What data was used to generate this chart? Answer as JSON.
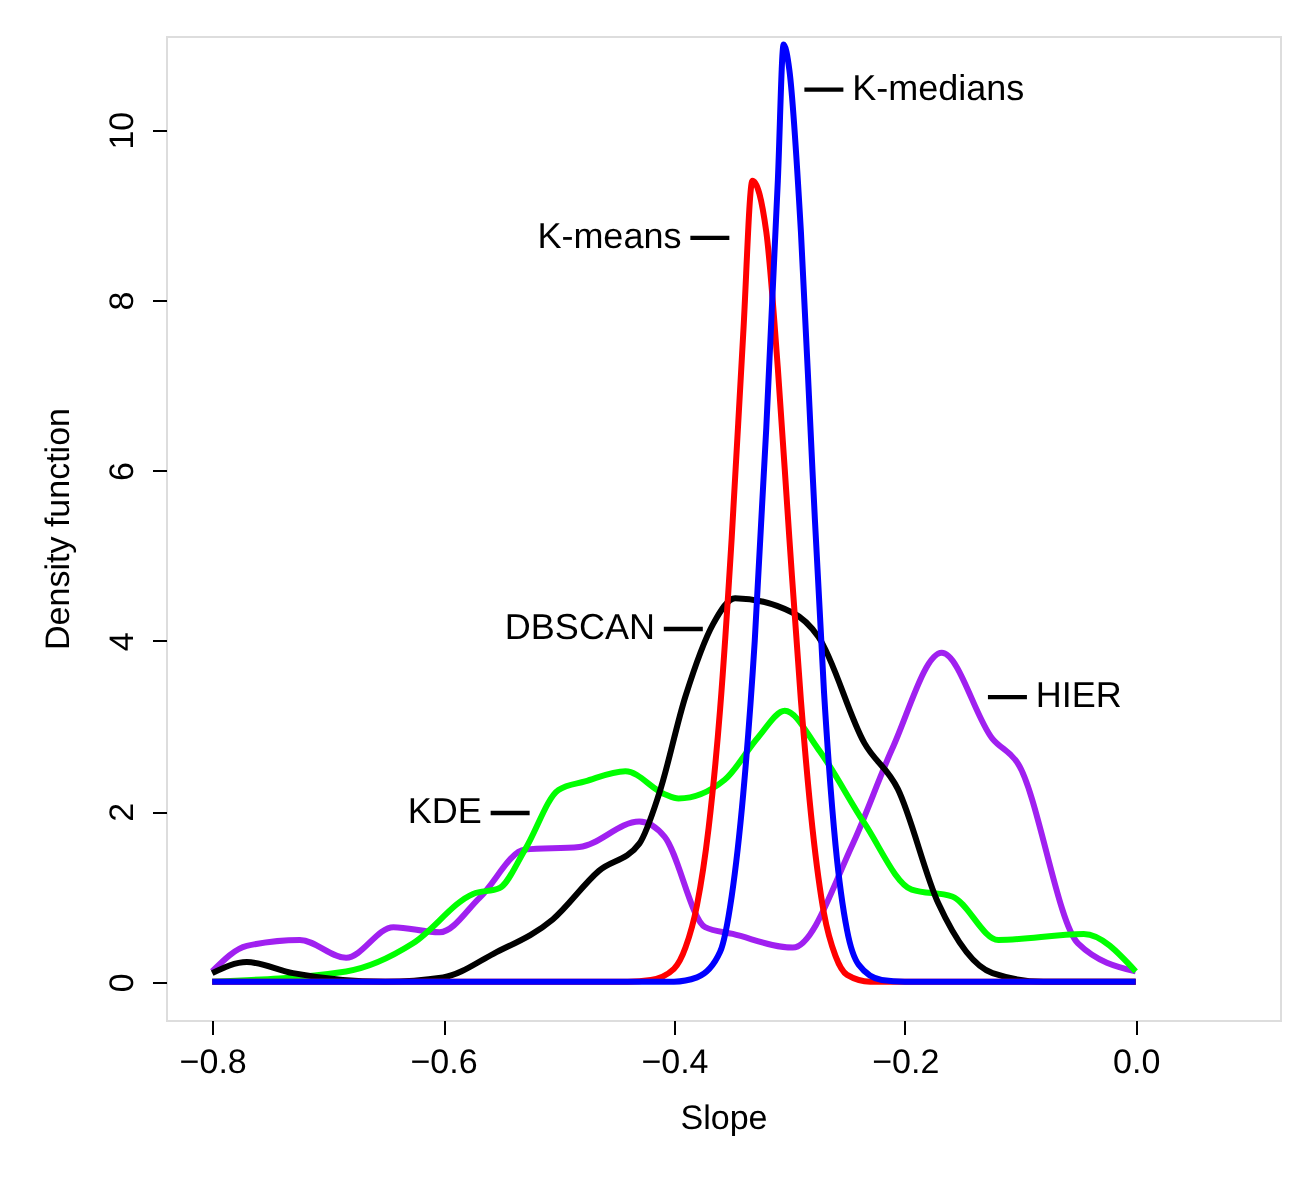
{
  "chart_data": {
    "type": "line",
    "xlabel": "Slope",
    "ylabel": "Density function",
    "xlim": [
      -0.84,
      0.125
    ],
    "ylim": [
      -0.45,
      11.1
    ],
    "xticks": [
      -0.8,
      -0.6,
      -0.4,
      -0.2,
      {
        "value": 0,
        "label": "0.0"
      }
    ],
    "yticks": [
      0,
      2,
      4,
      6,
      8,
      10
    ],
    "grid": false,
    "marker": "none",
    "line_style": "solid",
    "series": [
      {
        "color": "#a020f0",
        "x": [
          -0.8,
          -0.77,
          -0.724,
          -0.684,
          -0.643,
          -0.603,
          -0.568,
          -0.529,
          -0.482,
          -0.43,
          -0.408,
          -0.373,
          -0.349,
          -0.297,
          -0.245,
          -0.211,
          -0.168,
          -0.124,
          -0.102,
          -0.05,
          0.0
        ],
        "values": [
          0.12,
          0.42,
          0.49,
          0.28,
          0.64,
          0.58,
          0.99,
          1.55,
          1.58,
          1.88,
          1.7,
          0.64,
          0.56,
          0.4,
          1.62,
          2.73,
          3.86,
          2.85,
          2.56,
          0.45,
          0.12
        ]
      },
      {
        "color": "#00ff00",
        "x": [
          -0.8,
          -0.684,
          -0.626,
          -0.574,
          -0.551,
          -0.529,
          -0.5,
          -0.477,
          -0.442,
          -0.408,
          -0.396,
          -0.356,
          -0.327,
          -0.304,
          -0.275,
          -0.235,
          -0.194,
          -0.159,
          -0.119,
          -0.045,
          0.0
        ],
        "values": [
          0,
          0.12,
          0.45,
          1.03,
          1.1,
          1.55,
          2.25,
          2.35,
          2.47,
          2.2,
          2.15,
          2.37,
          2.87,
          3.18,
          2.73,
          1.86,
          1.08,
          1.0,
          0.49,
          0.56,
          0.12
        ]
      },
      {
        "color": "#000000",
        "x": [
          -0.8,
          -0.77,
          -0.73,
          -0.65,
          -0.6,
          -0.556,
          -0.505,
          -0.465,
          -0.43,
          -0.413,
          -0.39,
          -0.366,
          -0.347,
          -0.297,
          -0.275,
          -0.235,
          -0.206,
          -0.171,
          -0.124,
          -0.08,
          0.0
        ],
        "values": [
          0.1,
          0.23,
          0.1,
          0,
          0.05,
          0.33,
          0.73,
          1.3,
          1.62,
          2.2,
          3.35,
          4.2,
          4.5,
          4.33,
          4.05,
          2.8,
          2.26,
          0.92,
          0.1,
          0,
          0
        ]
      },
      {
        "color": "#ff0000",
        "x": [
          -0.8,
          -0.44,
          -0.42,
          -0.4,
          -0.39,
          -0.38,
          -0.37,
          -0.36,
          -0.35,
          -0.34,
          -0.332,
          -0.32,
          -0.31,
          -0.3,
          -0.29,
          -0.28,
          -0.27,
          -0.26,
          -0.25,
          -0.23,
          0.0
        ],
        "values": [
          0,
          0,
          0.02,
          0.15,
          0.4,
          0.9,
          1.8,
          3.2,
          5.2,
          7.6,
          9.4,
          8.8,
          7.2,
          5.2,
          3.3,
          1.8,
          0.8,
          0.3,
          0.08,
          0,
          0
        ]
      },
      {
        "color": "#0000ff",
        "x": [
          -0.8,
          -0.4,
          -0.38,
          -0.36,
          -0.35,
          -0.34,
          -0.33,
          -0.32,
          -0.31,
          -0.305,
          -0.3,
          -0.29,
          -0.28,
          -0.27,
          -0.26,
          -0.25,
          -0.24,
          -0.22,
          -0.2,
          0.0
        ],
        "values": [
          0,
          0,
          0.05,
          0.35,
          1.0,
          2.2,
          4.0,
          6.5,
          9.4,
          11.0,
          10.7,
          8.8,
          6.0,
          3.4,
          1.6,
          0.6,
          0.2,
          0.02,
          0,
          0
        ]
      }
    ],
    "annotations": [
      "HIER",
      "KDE",
      "DBSCAN",
      "K-means",
      "K-medians"
    ]
  }
}
